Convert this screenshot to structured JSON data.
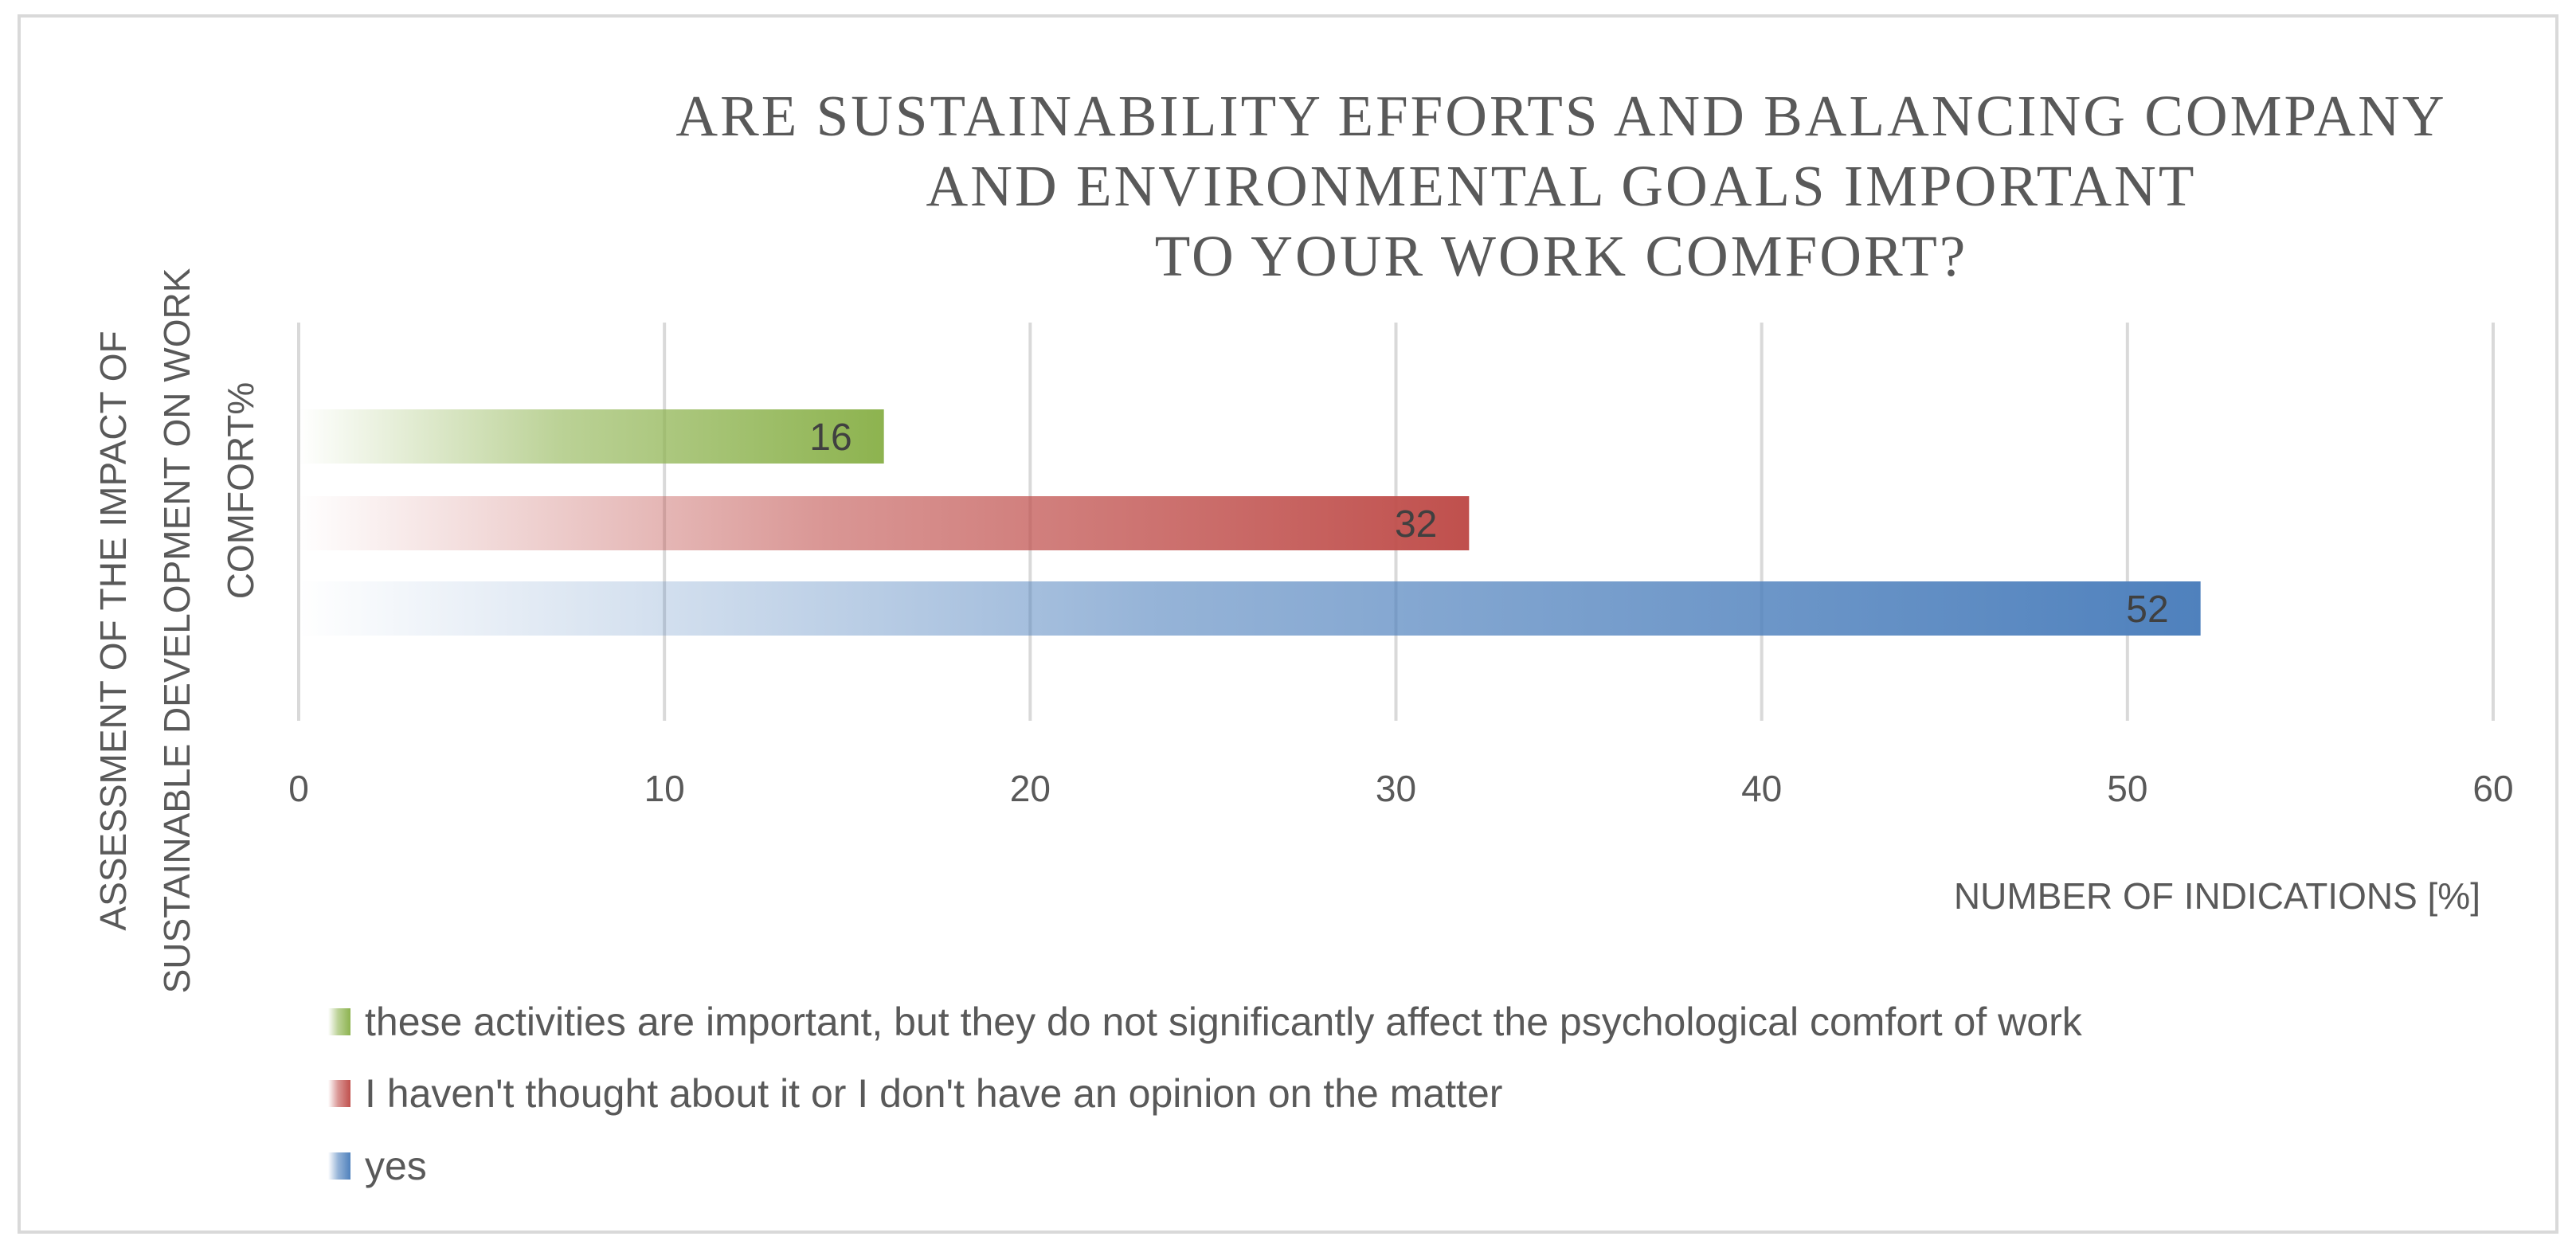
{
  "chart_data": {
    "type": "bar",
    "orientation": "horizontal",
    "title_lines": [
      "ARE SUSTAINABILITY  EFFORTS AND BALANCING  COMPANY",
      "AND ENVIRONMENTAL  GOALS  IMPORTANT",
      "TO YOUR WORK COMFORT?"
    ],
    "ylabel_lines": [
      "ASSESSMENT OF THE IMPACT OF",
      "SUSTAINABLE DEVELOPMENT ON WORK",
      "COMFORT%"
    ],
    "xlabel": "NUMBER OF INDICATIONS [%]",
    "xlim": [
      0,
      60
    ],
    "xticks": [
      0,
      10,
      20,
      30,
      40,
      50,
      60
    ],
    "grid": true,
    "legend_position": "bottom",
    "series": [
      {
        "name": "these activities are important, but they do not significantly affect the psychological comfort of work",
        "value": 16,
        "label": "16",
        "color": "#8db34f"
      },
      {
        "name": "I haven't thought about it or I don't have an opinion on the matter",
        "value": 32,
        "label": "32",
        "color": "#c0504d"
      },
      {
        "name": "yes",
        "value": 52,
        "label": "52",
        "color": "#4f81bd"
      }
    ]
  }
}
